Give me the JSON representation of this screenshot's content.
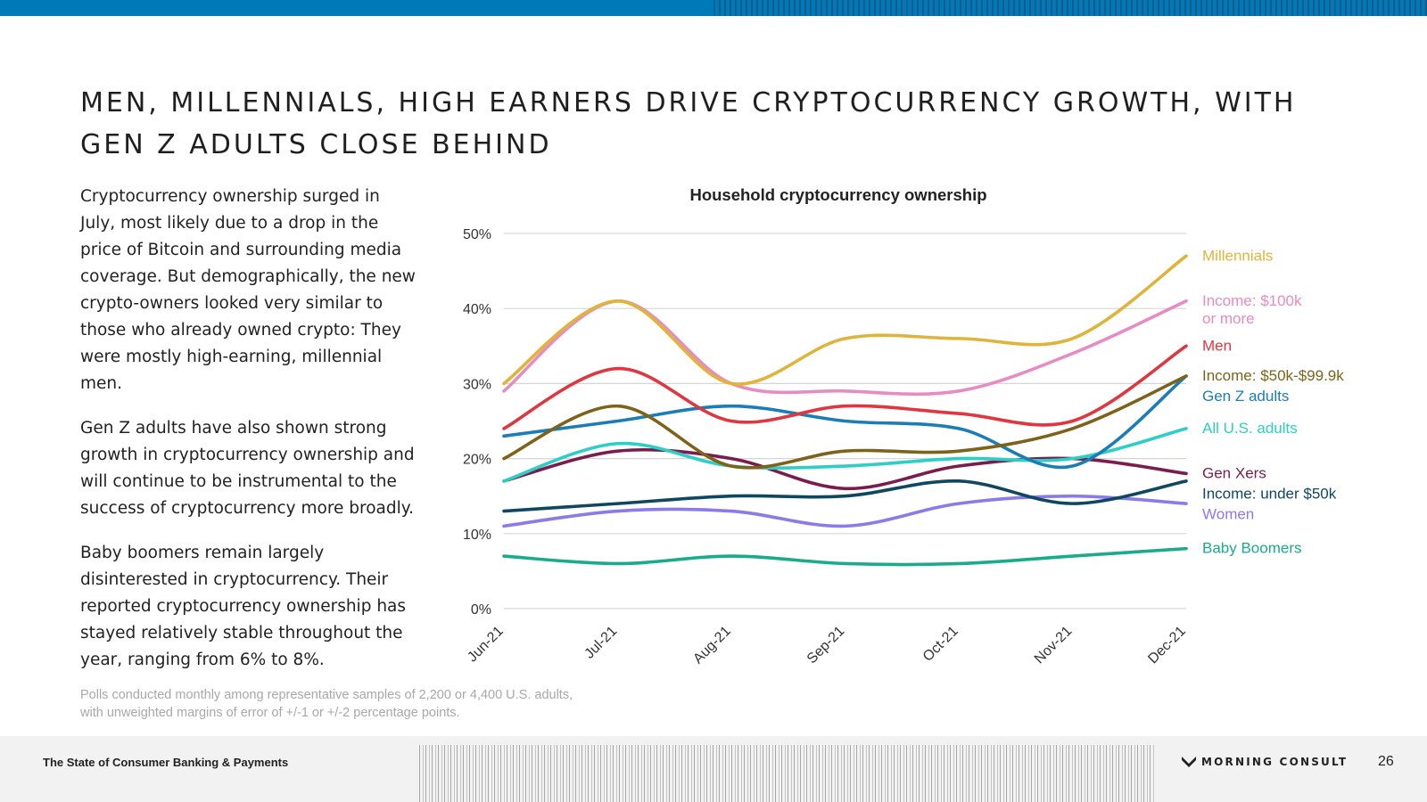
{
  "slide": {
    "title": "MEN, MILLENNIALS, HIGH EARNERS DRIVE CRYPTOCURRENCY GROWTH, WITH GEN Z ADULTS CLOSE BEHIND",
    "paragraphs": [
      "Cryptocurrency ownership surged in July, most likely due to a drop in the price of Bitcoin and surrounding media coverage. But demographically, the new crypto-owners looked very similar to those who already owned crypto: They were mostly high-earning, millennial men.",
      "Gen Z adults have also shown strong growth in cryptocurrency ownership and will continue to be instrumental to the success of cryptocurrency more broadly.",
      "Baby boomers remain largely disinterested in cryptocurrency. Their reported cryptocurrency ownership has stayed relatively stable throughout the year, ranging from 6% to 8%."
    ],
    "footnote_line1": "Polls conducted monthly among representative samples of 2,200 or 4,400 U.S. adults,",
    "footnote_line2": "with unweighted margins of error of +/-1 or +/-2 percentage points."
  },
  "footer": {
    "report_title": "The State of Consumer Banking & Payments",
    "brand": "MORNING CONSULT",
    "page_number": "26",
    "brand_mark_icon": "morning-consult-logo-icon",
    "band_color": "#0079b8"
  },
  "chart_data": {
    "type": "line",
    "title": "Household cryptocurrency ownership",
    "x": [
      "Jun-21",
      "Jul-21",
      "Aug-21",
      "Sep-21",
      "Oct-21",
      "Nov-21",
      "Dec-21"
    ],
    "ylim": [
      0,
      50
    ],
    "yticks": [
      "0%",
      "10%",
      "20%",
      "30%",
      "40%",
      "50%"
    ],
    "grid": true,
    "legend_placement": "right",
    "series": [
      {
        "name": "Millennials",
        "color": "#e0b43a",
        "values": [
          30,
          41,
          30,
          36,
          36,
          36,
          47
        ]
      },
      {
        "name": "Income: $100k or more",
        "label_lines": [
          "Income: $100k",
          "or more"
        ],
        "color": "#e78bc3",
        "values": [
          29,
          41,
          30,
          29,
          29,
          34,
          41
        ]
      },
      {
        "name": "Men",
        "color": "#e0363f",
        "values": [
          24,
          32,
          25,
          27,
          26,
          25,
          35
        ]
      },
      {
        "name": "Income: $50k-$99.9k",
        "color": "#7d6219",
        "values": [
          20,
          27,
          19,
          21,
          21,
          24,
          31
        ]
      },
      {
        "name": "Gen Z adults",
        "color": "#1a7db8",
        "values": [
          23,
          25,
          27,
          25,
          24,
          19,
          31
        ]
      },
      {
        "name": "All U.S. adults",
        "color": "#2dcfc4",
        "values": [
          17,
          22,
          19,
          19,
          20,
          20,
          24
        ]
      },
      {
        "name": "Gen Xers",
        "color": "#7a1d4e",
        "values": [
          17,
          21,
          20,
          16,
          19,
          20,
          18
        ]
      },
      {
        "name": "Income: under $50k",
        "color": "#0f4761",
        "values": [
          13,
          14,
          15,
          15,
          17,
          14,
          17
        ]
      },
      {
        "name": "Women",
        "color": "#8a7be8",
        "values": [
          11,
          13,
          13,
          11,
          14,
          15,
          14
        ]
      },
      {
        "name": "Baby Boomers",
        "color": "#1aab8a",
        "values": [
          7,
          6,
          7,
          6,
          6,
          7,
          8
        ]
      }
    ]
  }
}
